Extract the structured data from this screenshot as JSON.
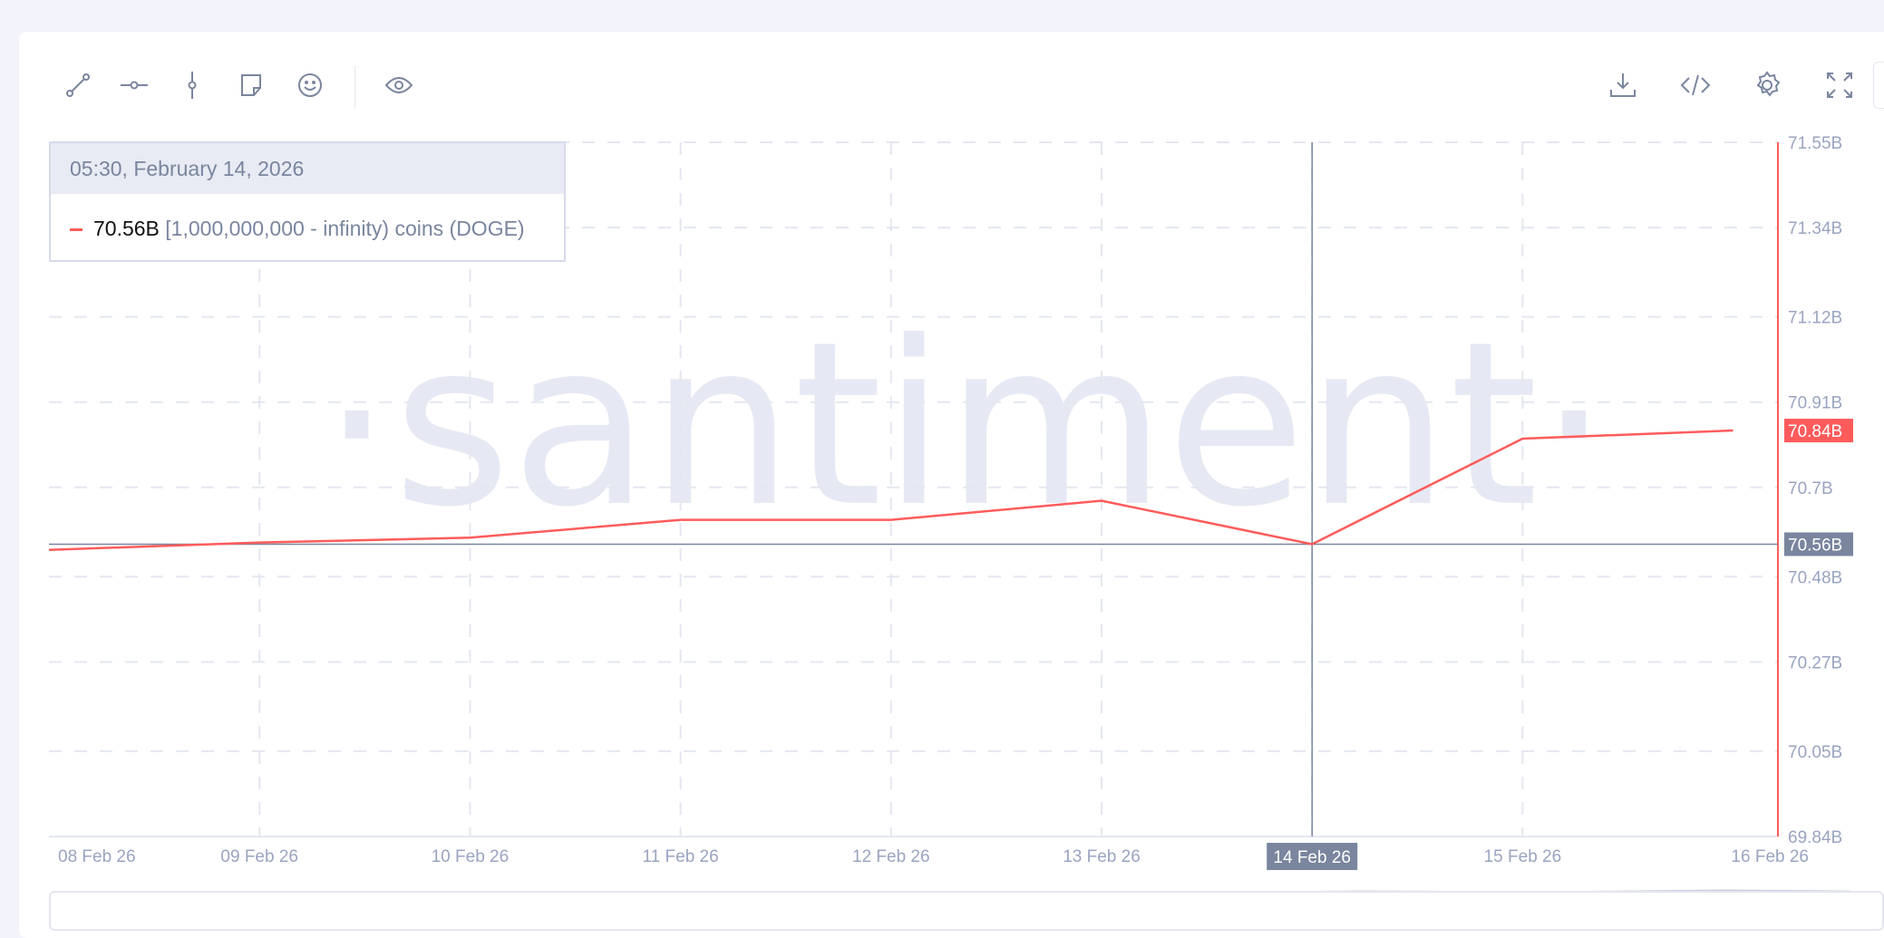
{
  "toolbar": {
    "left_icons": [
      "trend-line-icon",
      "horizontal-ray-icon",
      "vertical-line-icon",
      "sticky-note-icon",
      "emoji-icon",
      "eye-icon"
    ],
    "right_icons": [
      "download-icon",
      "embed-code-icon",
      "settings-gear-icon",
      "fullscreen-icon"
    ]
  },
  "tooltip": {
    "datetime": "05:30, February 14, 2026",
    "value": "70.56B",
    "metric_label": "[1,000,000,000 - infinity) coins (DOGE)",
    "color": "#ff5b5b"
  },
  "watermark": "·santiment·",
  "chart_data": {
    "type": "line",
    "x": [
      "08 Feb 26",
      "09 Feb 26",
      "10 Feb 26",
      "11 Feb 26",
      "12 Feb 26",
      "13 Feb 26",
      "14 Feb 26",
      "15 Feb 26",
      "16 Feb 26"
    ],
    "series": [
      {
        "name": "[1,000,000,000 - infinity) coins (DOGE)",
        "color": "#ff5b5b",
        "values": [
          70.546,
          70.564,
          70.576,
          70.62,
          70.62,
          70.667,
          70.56,
          70.82,
          70.84
        ]
      }
    ],
    "ylim": [
      69.84,
      71.55
    ],
    "yticks": [
      "71.55B",
      "71.34B",
      "71.12B",
      "70.91B",
      "70.7B",
      "70.48B",
      "70.27B",
      "70.05B",
      "69.84B"
    ],
    "ytick_values": [
      71.55,
      71.34,
      71.12,
      70.91,
      70.7,
      70.48,
      70.27,
      70.05,
      69.84
    ],
    "xticks": [
      "08 Feb 26",
      "09 Feb 26",
      "10 Feb 26",
      "11 Feb 26",
      "12 Feb 26",
      "13 Feb 26",
      "14 Feb 26",
      "15 Feb 26",
      "16 Feb 26"
    ],
    "y_axis_position": "right",
    "grid": true,
    "last_value_label": "70.84B",
    "crosshair": {
      "x": "14 Feb 26",
      "y": 70.56,
      "y_label": "70.56B",
      "x_label": "14 Feb 26"
    },
    "colors": {
      "axis": "#ff5b5b",
      "crosshair": "#7a859e",
      "grid": "#e4e7f0"
    }
  }
}
